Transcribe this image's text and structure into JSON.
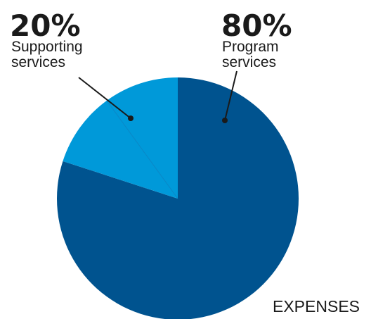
{
  "chart_data": {
    "type": "pie",
    "title": "EXPENSES",
    "slices": [
      {
        "label_lines": [
          "Program",
          "services"
        ],
        "value": 80,
        "value_label": "80%",
        "color": "#00538f"
      },
      {
        "label_lines": [
          "Supporting",
          "services"
        ],
        "value": 20,
        "value_label": "20%",
        "color": "#0099d9"
      }
    ],
    "slice_divider_color": "#0a88c7",
    "leader_line_color": "#1a1a1a"
  }
}
